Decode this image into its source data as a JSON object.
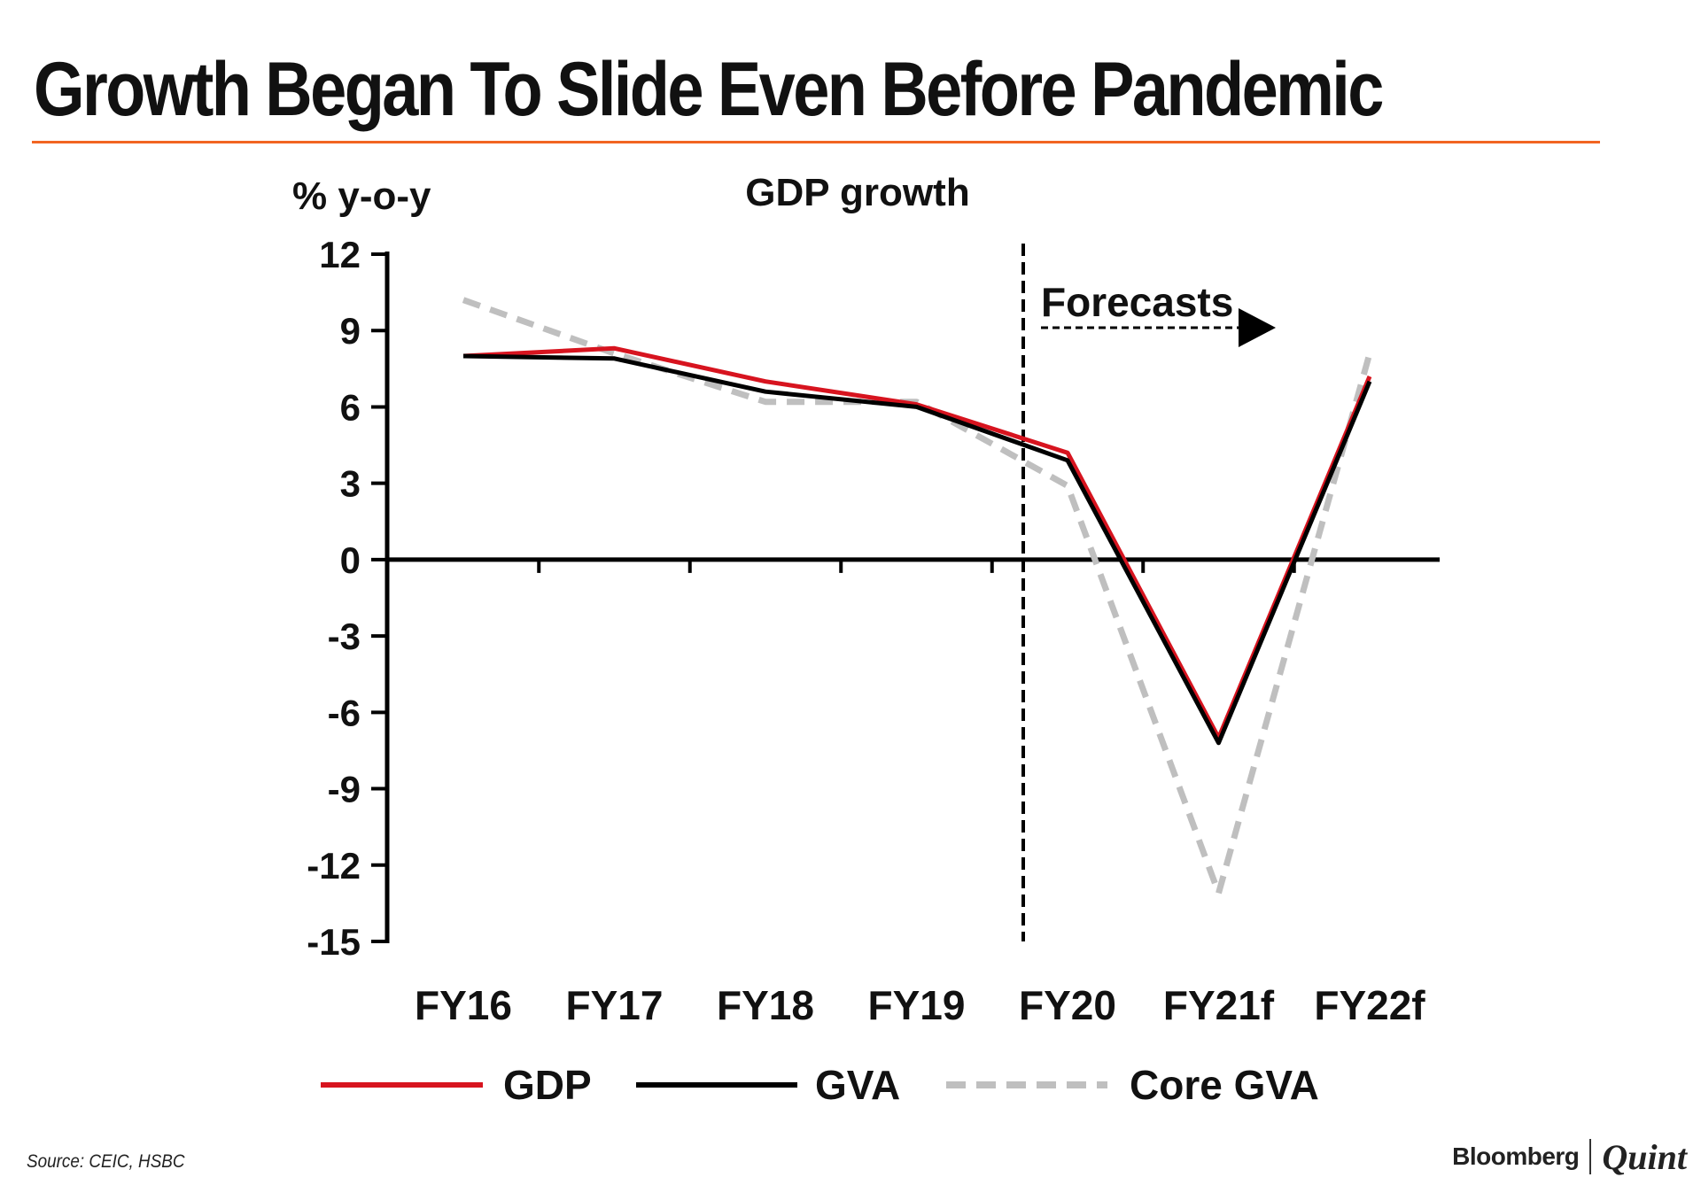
{
  "header": {
    "title": "Growth Began To Slide Even Before Pandemic",
    "accent_color": "#f26522"
  },
  "chart_data": {
    "type": "line",
    "title": "GDP growth",
    "ylabel": "% y-o-y",
    "xlabel": "",
    "categories": [
      "FY16",
      "FY17",
      "FY18",
      "FY19",
      "FY20",
      "FY21f",
      "FY22f"
    ],
    "ylim": [
      -15,
      12
    ],
    "yticks": [
      12,
      9,
      6,
      3,
      0,
      -3,
      -6,
      -9,
      -12,
      -15
    ],
    "forecast_label": "Forecasts",
    "forecast_start": "FY20",
    "series": [
      {
        "name": "GDP",
        "color": "#d7141f",
        "dash": "solid",
        "values": [
          8.0,
          8.3,
          7.0,
          6.1,
          4.2,
          -7.0,
          7.2
        ]
      },
      {
        "name": "GVA",
        "color": "#000000",
        "dash": "solid",
        "values": [
          8.0,
          7.9,
          6.6,
          6.0,
          3.9,
          -7.2,
          7.0
        ]
      },
      {
        "name": "Core GVA",
        "color": "#bfbfbf",
        "dash": "dashed",
        "values": [
          10.2,
          8.1,
          6.2,
          6.2,
          2.9,
          -13.1,
          8.1
        ]
      }
    ],
    "grid": false,
    "legend": "bottom"
  },
  "footer": {
    "source": "Source: CEIC, HSBC",
    "brand_left": "Bloomberg",
    "brand_right": "Quint"
  }
}
